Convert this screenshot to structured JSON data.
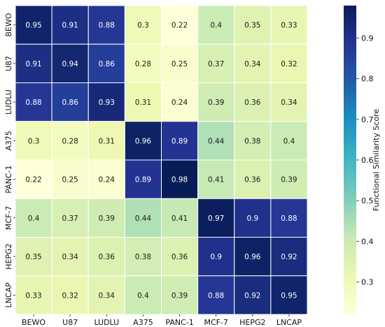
{
  "chart_data": {
    "type": "heatmap",
    "title": "",
    "xlabel": "",
    "ylabel": "",
    "x_categories": [
      "BEWO",
      "U87",
      "LUDLU",
      "A375",
      "PANC-1",
      "MCF-7",
      "HEPG2",
      "LNCAP"
    ],
    "y_categories": [
      "BEWO",
      "U87",
      "LUDLU",
      "A375",
      "PANC-1",
      "MCF-7",
      "HEPG2",
      "LNCAP"
    ],
    "values": [
      [
        0.95,
        0.91,
        0.88,
        0.3,
        0.22,
        0.4,
        0.35,
        0.33
      ],
      [
        0.91,
        0.94,
        0.86,
        0.28,
        0.25,
        0.37,
        0.34,
        0.32
      ],
      [
        0.88,
        0.86,
        0.93,
        0.31,
        0.24,
        0.39,
        0.36,
        0.34
      ],
      [
        0.3,
        0.28,
        0.31,
        0.96,
        0.89,
        0.44,
        0.38,
        0.4
      ],
      [
        0.22,
        0.25,
        0.24,
        0.89,
        0.98,
        0.41,
        0.36,
        0.39
      ],
      [
        0.4,
        0.37,
        0.39,
        0.44,
        0.41,
        0.97,
        0.9,
        0.88
      ],
      [
        0.35,
        0.34,
        0.36,
        0.38,
        0.36,
        0.9,
        0.96,
        0.92
      ],
      [
        0.33,
        0.32,
        0.34,
        0.4,
        0.39,
        0.88,
        0.92,
        0.95
      ]
    ],
    "colorbar": {
      "label": "Functional Similarity Score",
      "ticks": [
        0.3,
        0.4,
        0.5,
        0.6,
        0.7,
        0.8,
        0.9
      ],
      "range": [
        0.22,
        0.98
      ],
      "colormap": "YlGnBu",
      "colors": [
        "#ffffd9",
        "#edf8b1",
        "#c7e9b4",
        "#7fcdbb",
        "#41b6c4",
        "#1d91c0",
        "#225ea8",
        "#253494",
        "#081d58"
      ]
    },
    "annotated": true,
    "grid": false,
    "legend": "colorbar-right"
  }
}
